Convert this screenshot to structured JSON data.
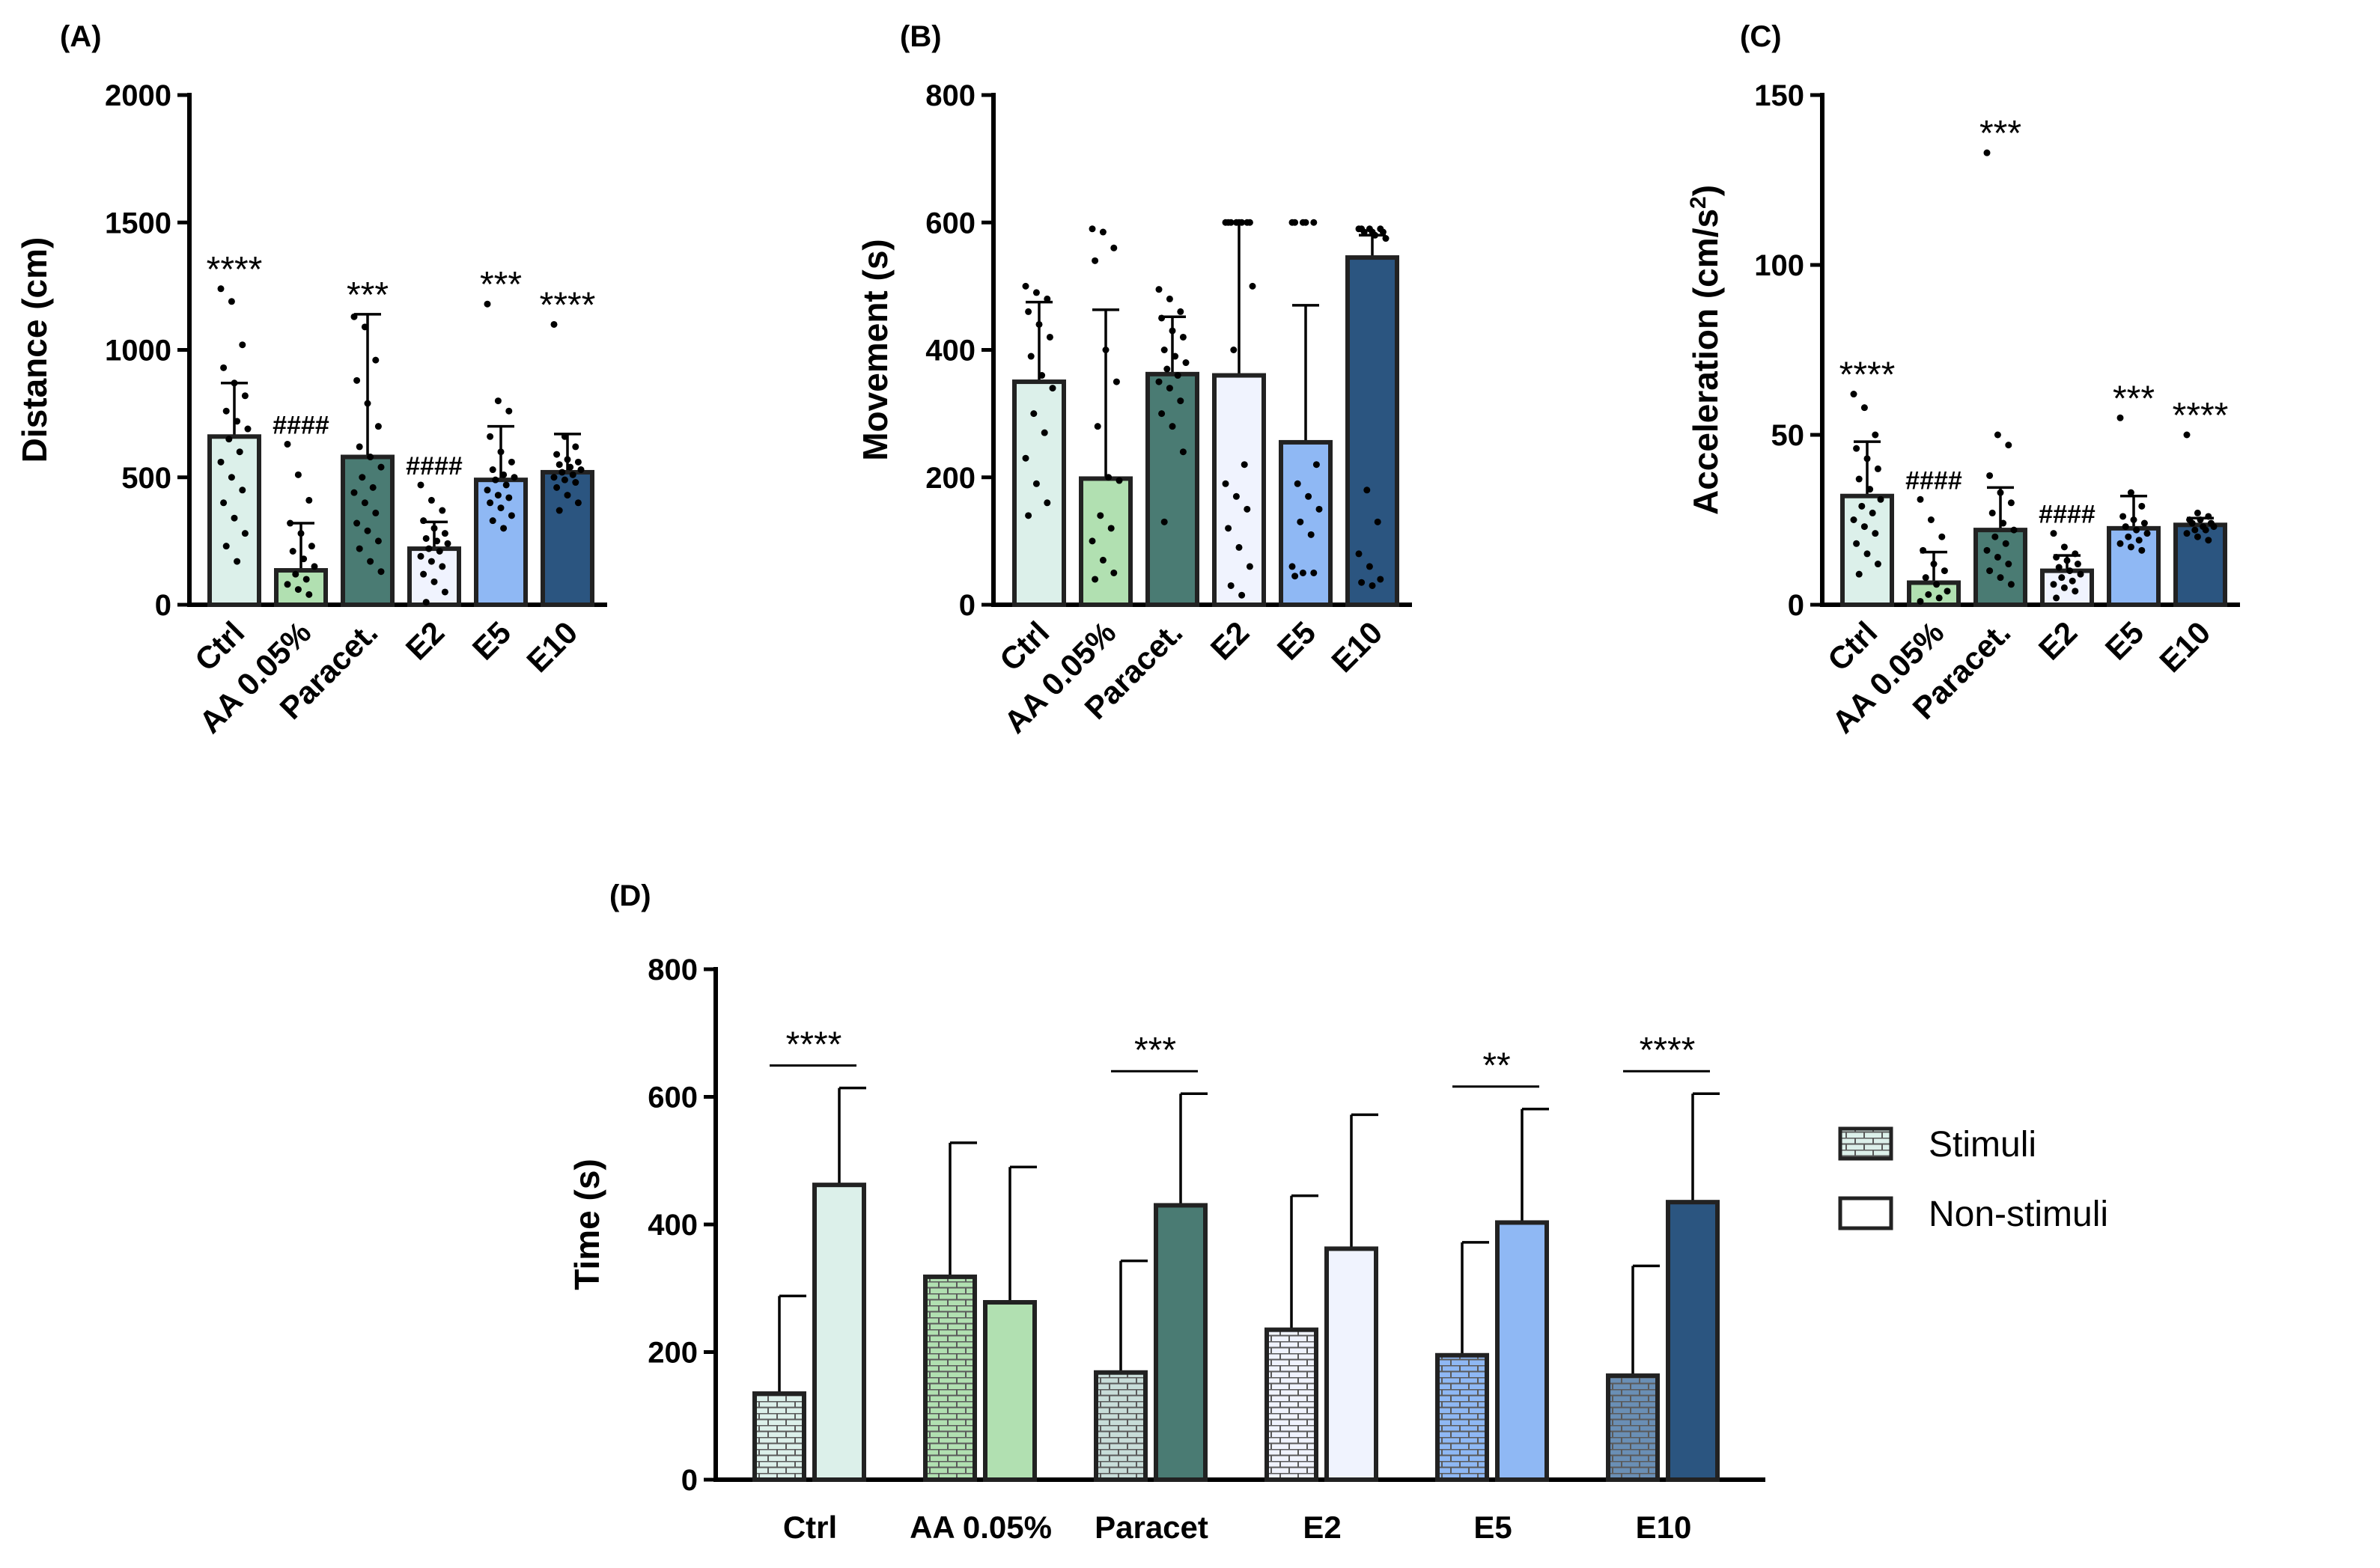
{
  "chart_data": [
    {
      "type": "bar",
      "panel_label": "(A)",
      "ylabel": "Distance (cm)",
      "ylim": [
        0,
        2000
      ],
      "yticks": [
        0,
        500,
        1000,
        1500,
        2000
      ],
      "categories": [
        "Ctrl",
        "AA 0.05%",
        "Paracet.",
        "E2",
        "E5",
        "E10"
      ],
      "colors": [
        "#DCF0EA",
        "#B1E0B1",
        "#4A7B73",
        "#F0F3FE",
        "#8FB8F4",
        "#2B5580"
      ],
      "values": [
        660,
        135,
        580,
        220,
        490,
        520
      ],
      "sd": [
        210,
        185,
        560,
        105,
        210,
        150
      ],
      "annotations": [
        "****",
        "####",
        "***",
        "####",
        "***",
        "****"
      ],
      "points": [
        [
          1240,
          1190,
          1020,
          930,
          870,
          820,
          760,
          720,
          690,
          650,
          600,
          560,
          500,
          450,
          400,
          340,
          280,
          230,
          170
        ],
        [
          630,
          510,
          410,
          320,
          280,
          230,
          210,
          180,
          150,
          120,
          100,
          80,
          60,
          40
        ],
        [
          1130,
          1090,
          960,
          880,
          790,
          700,
          620,
          580,
          540,
          500,
          460,
          440,
          400,
          360,
          320,
          290,
          250,
          220,
          170,
          130
        ],
        [
          470,
          410,
          370,
          330,
          300,
          280,
          260,
          250,
          240,
          220,
          210,
          190,
          170,
          150,
          120,
          90,
          50,
          10
        ],
        [
          1180,
          800,
          760,
          660,
          600,
          560,
          530,
          510,
          500,
          490,
          470,
          450,
          430,
          420,
          400,
          380,
          350,
          330,
          300
        ],
        [
          1100,
          660,
          620,
          590,
          570,
          560,
          550,
          540,
          530,
          520,
          510,
          500,
          490,
          480,
          460,
          430,
          400,
          370
        ]
      ]
    },
    {
      "type": "bar",
      "panel_label": "(B)",
      "ylabel": "Movement (s)",
      "ylim": [
        0,
        800
      ],
      "yticks": [
        0,
        200,
        400,
        600,
        800
      ],
      "categories": [
        "Ctrl",
        "AA 0.05%",
        "Paracet.",
        "E2",
        "E5",
        "E10"
      ],
      "colors": [
        "#DCF0EA",
        "#B1E0B1",
        "#4A7B73",
        "#F0F3FE",
        "#8FB8F4",
        "#2B5580"
      ],
      "values": [
        350,
        198,
        362,
        360,
        255,
        545
      ],
      "sd": [
        125,
        265,
        90,
        240,
        215,
        35
      ],
      "annotations": [
        "",
        "",
        "",
        "",
        "",
        ""
      ],
      "points": [
        [
          500,
          490,
          480,
          460,
          440,
          420,
          390,
          360,
          340,
          300,
          270,
          230,
          190,
          160,
          140
        ],
        [
          590,
          585,
          560,
          540,
          400,
          350,
          280,
          200,
          195,
          140,
          120,
          100,
          70,
          50,
          40
        ],
        [
          495,
          480,
          460,
          450,
          430,
          420,
          400,
          390,
          380,
          370,
          360,
          350,
          340,
          320,
          300,
          280,
          240,
          130
        ],
        [
          600,
          600,
          600,
          600,
          600,
          600,
          600,
          600,
          500,
          400,
          220,
          190,
          170,
          150,
          120,
          90,
          60,
          30,
          15
        ],
        [
          600,
          600,
          600,
          600,
          600,
          220,
          190,
          170,
          150,
          130,
          110,
          60,
          50,
          50,
          45
        ],
        [
          590,
          590,
          590,
          590,
          585,
          585,
          585,
          580,
          575,
          180,
          130,
          80,
          60,
          40,
          35,
          30
        ]
      ]
    },
    {
      "type": "bar",
      "panel_label": "(C)",
      "ylabel": "Acceleration (cm/s2)",
      "ylim": [
        0,
        150
      ],
      "yticks": [
        0,
        50,
        100,
        150
      ],
      "categories": [
        "Ctrl",
        "AA 0.05%",
        "Paracet.",
        "E2",
        "E5",
        "E10"
      ],
      "colors": [
        "#DCF0EA",
        "#B1E0B1",
        "#4A7B73",
        "#F0F3FE",
        "#8FB8F4",
        "#2B5580"
      ],
      "values": [
        32,
        6.5,
        22,
        10,
        22.5,
        23.5
      ],
      "sd": [
        16,
        9,
        12.5,
        4.5,
        9.5,
        2
      ],
      "annotations": [
        "****",
        "####",
        "***",
        "####",
        "***",
        "****"
      ],
      "points": [
        [
          62,
          58,
          50,
          46,
          43,
          40,
          37,
          34,
          31,
          29,
          27,
          25,
          23,
          21,
          18,
          15,
          12,
          9
        ],
        [
          31,
          25,
          20,
          16,
          12,
          10,
          8,
          6,
          4,
          3,
          2,
          1
        ],
        [
          133,
          50,
          47,
          38,
          33,
          30,
          27,
          24,
          22,
          20,
          18,
          16,
          14,
          12,
          10,
          8,
          6
        ],
        [
          21,
          17,
          15,
          14,
          13,
          12,
          11,
          10,
          9,
          8,
          7,
          6,
          5,
          4,
          2
        ],
        [
          55,
          33,
          29,
          26,
          25,
          24,
          23,
          22,
          21,
          20,
          19,
          18,
          17,
          16
        ],
        [
          50,
          27,
          26,
          25,
          25,
          24,
          24,
          23,
          23,
          22,
          22,
          21,
          20,
          19
        ]
      ]
    },
    {
      "type": "bar",
      "panel_label": "(D)",
      "ylabel": "Time (s)",
      "ylim": [
        0,
        800
      ],
      "yticks": [
        0,
        200,
        400,
        600,
        800
      ],
      "categories": [
        "Ctrl",
        "AA 0.05%",
        "Paracet",
        "E2",
        "E5",
        "E10"
      ],
      "colors": [
        "#DCF0EA",
        "#B1E0B1",
        "#4A7B73",
        "#F0F3FE",
        "#8FB8F4",
        "#2B5580"
      ],
      "series": [
        {
          "name": "Stimuli",
          "values": [
            135,
            318,
            168,
            235,
            195,
            163
          ],
          "sd": [
            153,
            210,
            175,
            210,
            177,
            172
          ]
        },
        {
          "name": "Non-stimuli",
          "values": [
            462,
            278,
            430,
            362,
            403,
            435
          ],
          "sd": [
            152,
            212,
            175,
            210,
            178,
            170
          ]
        }
      ],
      "significance": [
        "****",
        "",
        "***",
        "",
        "**",
        "****"
      ],
      "legend": [
        "Stimuli",
        "Non-stimuli"
      ]
    }
  ]
}
